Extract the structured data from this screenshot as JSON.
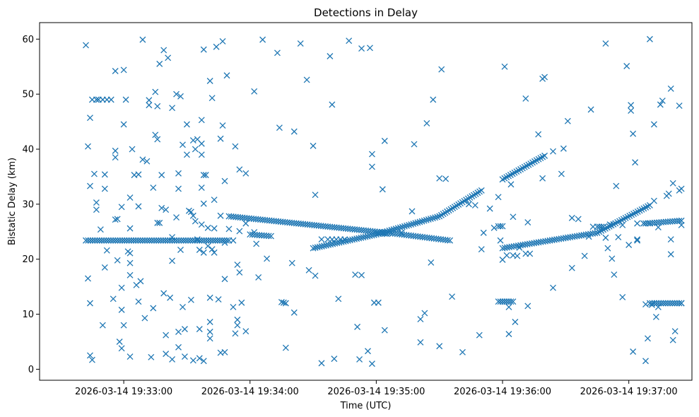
{
  "chart_data": {
    "type": "scatter",
    "title": "Detections in Delay",
    "xlabel": "Time (UTC)",
    "ylabel": "Bistatic Delay (km)",
    "x_date": "2026-03-14",
    "xlim": [
      "19:32:20",
      "19:37:30"
    ],
    "ylim": [
      -2,
      63
    ],
    "x_ticks": [
      "19:33:00",
      "19:34:00",
      "19:35:00",
      "19:36:00",
      "19:37:00"
    ],
    "x_tick_labels": [
      "2026-03-14 19:33:00",
      "2026-03-14 19:34:00",
      "2026-03-14 19:35:00",
      "2026-03-14 19:36:00",
      "2026-03-14 19:37:00"
    ],
    "y_ticks": [
      0,
      10,
      20,
      30,
      40,
      50,
      60
    ],
    "y_tick_labels": [
      "0",
      "10",
      "20",
      "30",
      "40",
      "50",
      "60"
    ],
    "marker": "x",
    "color": "#1f77b4",
    "grid": false,
    "legend": "none",
    "tracks": [
      {
        "points": [
          [
            "19:32:42",
            23.4
          ],
          [
            "19:33:50",
            23.4
          ]
        ]
      },
      {
        "points": [
          [
            "19:33:50",
            27.8
          ],
          [
            "19:35:10",
            24.6
          ],
          [
            "19:35:35",
            23.4
          ]
        ]
      },
      {
        "points": [
          [
            "19:34:30",
            22.0
          ],
          [
            "19:35:00",
            24.5
          ],
          [
            "19:35:30",
            27.8
          ],
          [
            "19:35:50",
            32.5
          ]
        ]
      },
      {
        "points": [
          [
            "19:36:00",
            34.5
          ],
          [
            "19:36:20",
            38.8
          ]
        ]
      },
      {
        "points": [
          [
            "19:36:00",
            22.0
          ],
          [
            "19:36:45",
            24.8
          ],
          [
            "19:37:10",
            29.8
          ]
        ]
      },
      {
        "points": [
          [
            "19:34:00",
            24.5
          ],
          [
            "19:34:10",
            24.2
          ]
        ]
      },
      {
        "points": [
          [
            "19:35:00",
            24.8
          ],
          [
            "19:35:05",
            24.6
          ]
        ]
      },
      {
        "points": [
          [
            "19:37:08",
            26.5
          ],
          [
            "19:37:25",
            27.0
          ]
        ]
      },
      {
        "points": [
          [
            "19:37:10",
            12.0
          ],
          [
            "19:37:25",
            12.0
          ]
        ]
      },
      {
        "points": [
          [
            "19:35:58",
            12.3
          ],
          [
            "19:36:05",
            12.3
          ]
        ]
      },
      {
        "points": [
          [
            "19:35:58",
            26.0
          ],
          [
            "19:36:00",
            26.0
          ]
        ]
      }
    ],
    "points": [
      [
        "19:32:42",
        58.9
      ],
      [
        "19:32:43",
        40.5
      ],
      [
        "19:32:43",
        16.5
      ],
      [
        "19:32:44",
        45.7
      ],
      [
        "19:32:44",
        33.3
      ],
      [
        "19:32:44",
        12.0
      ],
      [
        "19:32:44",
        2.5
      ],
      [
        "19:32:45",
        1.7
      ],
      [
        "19:32:45",
        49.0
      ],
      [
        "19:32:47",
        49.0
      ],
      [
        "19:32:48",
        49.0
      ],
      [
        "19:32:50",
        49.0
      ],
      [
        "19:32:52",
        49.0
      ],
      [
        "19:32:54",
        49.0
      ],
      [
        "19:32:46",
        35.5
      ],
      [
        "19:32:47",
        30.3
      ],
      [
        "19:32:47",
        29.0
      ],
      [
        "19:32:49",
        25.4
      ],
      [
        "19:32:50",
        8.0
      ],
      [
        "19:32:51",
        35.4
      ],
      [
        "19:32:51",
        32.8
      ],
      [
        "19:32:51",
        18.5
      ],
      [
        "19:32:52",
        21.6
      ],
      [
        "19:32:55",
        12.8
      ],
      [
        "19:32:56",
        54.2
      ],
      [
        "19:32:56",
        39.7
      ],
      [
        "19:32:56",
        38.5
      ],
      [
        "19:32:56",
        27.2
      ],
      [
        "19:32:57",
        27.3
      ],
      [
        "19:32:57",
        19.8
      ],
      [
        "19:32:59",
        29.5
      ],
      [
        "19:32:59",
        14.8
      ],
      [
        "19:32:59",
        10.8
      ],
      [
        "19:32:58",
        5.0
      ],
      [
        "19:32:59",
        3.8
      ],
      [
        "19:33:00",
        54.4
      ],
      [
        "19:33:00",
        44.5
      ],
      [
        "19:33:00",
        8.0
      ],
      [
        "19:33:01",
        49.0
      ],
      [
        "19:33:02",
        21.4
      ],
      [
        "19:33:03",
        25.6
      ],
      [
        "19:33:03",
        21.1
      ],
      [
        "19:33:03",
        19.3
      ],
      [
        "19:33:03",
        17.1
      ],
      [
        "19:33:03",
        31.2
      ],
      [
        "19:33:03",
        2.3
      ],
      [
        "19:33:04",
        40.0
      ],
      [
        "19:33:05",
        35.3
      ],
      [
        "19:33:06",
        15.3
      ],
      [
        "19:33:07",
        29.6
      ],
      [
        "19:33:07",
        12.3
      ],
      [
        "19:33:07",
        35.4
      ],
      [
        "19:33:08",
        16.0
      ],
      [
        "19:33:09",
        59.9
      ],
      [
        "19:33:09",
        38.1
      ],
      [
        "19:33:10",
        9.3
      ],
      [
        "19:33:11",
        37.8
      ],
      [
        "19:33:12",
        48.9
      ],
      [
        "19:33:12",
        48.0
      ],
      [
        "19:33:13",
        2.2
      ],
      [
        "19:33:14",
        11.1
      ],
      [
        "19:33:14",
        33.0
      ],
      [
        "19:33:15",
        50.4
      ],
      [
        "19:33:15",
        42.6
      ],
      [
        "19:33:16",
        41.8
      ],
      [
        "19:33:16",
        26.6
      ],
      [
        "19:33:16",
        47.8
      ],
      [
        "19:33:17",
        55.5
      ],
      [
        "19:33:17",
        26.6
      ],
      [
        "19:33:18",
        35.3
      ],
      [
        "19:33:18",
        29.3
      ],
      [
        "19:33:19",
        58.0
      ],
      [
        "19:33:19",
        13.8
      ],
      [
        "19:33:20",
        29.0
      ],
      [
        "19:33:20",
        6.2
      ],
      [
        "19:33:20",
        2.8
      ],
      [
        "19:33:21",
        56.6
      ],
      [
        "19:33:22",
        13.0
      ],
      [
        "19:33:23",
        47.5
      ],
      [
        "19:33:23",
        24.0
      ],
      [
        "19:33:23",
        19.7
      ],
      [
        "19:33:23",
        1.8
      ],
      [
        "19:33:25",
        50.0
      ],
      [
        "19:33:25",
        27.6
      ],
      [
        "19:33:26",
        32.8
      ],
      [
        "19:33:26",
        6.8
      ],
      [
        "19:33:26",
        4.0
      ],
      [
        "19:33:26",
        35.6
      ],
      [
        "19:33:27",
        49.6
      ],
      [
        "19:33:27",
        21.7
      ],
      [
        "19:33:28",
        11.3
      ],
      [
        "19:33:28",
        40.8
      ],
      [
        "19:33:29",
        7.3
      ],
      [
        "19:33:29",
        2.3
      ],
      [
        "19:33:30",
        44.5
      ],
      [
        "19:33:30",
        39.0
      ],
      [
        "19:33:31",
        28.8
      ],
      [
        "19:33:32",
        28.6
      ],
      [
        "19:33:32",
        12.6
      ],
      [
        "19:33:33",
        41.6
      ],
      [
        "19:33:33",
        27.9
      ],
      [
        "19:33:33",
        1.6
      ],
      [
        "19:33:34",
        40.0
      ],
      [
        "19:33:34",
        26.9
      ],
      [
        "19:33:35",
        41.8
      ],
      [
        "19:33:35",
        23.6
      ],
      [
        "19:33:36",
        21.7
      ],
      [
        "19:33:36",
        7.3
      ],
      [
        "19:33:36",
        2.0
      ],
      [
        "19:33:37",
        45.3
      ],
      [
        "19:33:37",
        41.0
      ],
      [
        "19:33:37",
        39.0
      ],
      [
        "19:33:37",
        33.0
      ],
      [
        "19:33:37",
        26.3
      ],
      [
        "19:33:38",
        58.1
      ],
      [
        "19:33:38",
        35.3
      ],
      [
        "19:33:38",
        30.1
      ],
      [
        "19:33:38",
        21.2
      ],
      [
        "19:33:38",
        1.5
      ],
      [
        "19:33:39",
        35.3
      ],
      [
        "19:33:40",
        25.7
      ],
      [
        "19:33:40",
        22.4
      ],
      [
        "19:33:41",
        52.4
      ],
      [
        "19:33:41",
        13.0
      ],
      [
        "19:33:41",
        8.6
      ],
      [
        "19:33:41",
        6.8
      ],
      [
        "19:33:41",
        5.6
      ],
      [
        "19:33:42",
        49.3
      ],
      [
        "19:33:42",
        21.8
      ],
      [
        "19:33:43",
        25.6
      ],
      [
        "19:33:43",
        21.2
      ],
      [
        "19:33:43",
        30.8
      ],
      [
        "19:33:44",
        58.6
      ],
      [
        "19:33:45",
        12.7
      ],
      [
        "19:33:46",
        41.9
      ],
      [
        "19:33:46",
        27.9
      ],
      [
        "19:33:46",
        3.0
      ],
      [
        "19:33:47",
        59.6
      ],
      [
        "19:33:47",
        44.3
      ],
      [
        "19:33:48",
        34.2
      ],
      [
        "19:33:48",
        23.0
      ],
      [
        "19:33:48",
        16.4
      ],
      [
        "19:33:48",
        3.1
      ],
      [
        "19:33:49",
        53.4
      ],
      [
        "19:33:50",
        25.5
      ],
      [
        "19:33:52",
        11.3
      ],
      [
        "19:33:52",
        23.4
      ],
      [
        "19:33:53",
        40.5
      ],
      [
        "19:33:53",
        6.5
      ],
      [
        "19:33:54",
        19.0
      ],
      [
        "19:33:54",
        9.0
      ],
      [
        "19:33:54",
        8.0
      ],
      [
        "19:33:55",
        36.3
      ],
      [
        "19:33:55",
        25.1
      ],
      [
        "19:33:55",
        17.6
      ],
      [
        "19:33:56",
        12.1
      ],
      [
        "19:33:58",
        35.6
      ],
      [
        "19:33:58",
        26.5
      ],
      [
        "19:33:58",
        6.9
      ],
      [
        "19:34:02",
        50.5
      ],
      [
        "19:34:02",
        24.9
      ],
      [
        "19:34:03",
        22.8
      ],
      [
        "19:34:04",
        16.7
      ],
      [
        "19:34:06",
        59.9
      ],
      [
        "19:34:08",
        20.1
      ],
      [
        "19:34:13",
        57.5
      ],
      [
        "19:34:14",
        43.9
      ],
      [
        "19:34:15",
        12.2
      ],
      [
        "19:34:16",
        12.1
      ],
      [
        "19:34:17",
        12.0
      ],
      [
        "19:34:17",
        3.9
      ],
      [
        "19:34:20",
        19.3
      ],
      [
        "19:34:21",
        43.2
      ],
      [
        "19:34:21",
        10.3
      ],
      [
        "19:34:24",
        59.2
      ],
      [
        "19:34:27",
        52.6
      ],
      [
        "19:34:28",
        18.0
      ],
      [
        "19:34:30",
        40.6
      ],
      [
        "19:34:31",
        31.7
      ],
      [
        "19:34:31",
        17.0
      ],
      [
        "19:34:34",
        23.6
      ],
      [
        "19:34:34",
        1.1
      ],
      [
        "19:34:37",
        23.6
      ],
      [
        "19:34:39",
        23.6
      ],
      [
        "19:34:41",
        23.6
      ],
      [
        "19:34:42",
        12.8
      ],
      [
        "19:34:43",
        23.6
      ],
      [
        "19:34:45",
        23.6
      ],
      [
        "19:34:38",
        56.9
      ],
      [
        "19:34:39",
        48.1
      ],
      [
        "19:34:40",
        1.9
      ],
      [
        "19:34:47",
        59.7
      ],
      [
        "19:34:50",
        17.2
      ],
      [
        "19:34:51",
        7.7
      ],
      [
        "19:34:52",
        1.8
      ],
      [
        "19:34:53",
        17.1
      ],
      [
        "19:34:53",
        58.3
      ],
      [
        "19:34:57",
        58.4
      ],
      [
        "19:34:56",
        3.3
      ],
      [
        "19:34:58",
        39.1
      ],
      [
        "19:34:58",
        36.8
      ],
      [
        "19:34:58",
        1.0
      ],
      [
        "19:34:59",
        12.1
      ],
      [
        "19:35:01",
        12.1
      ],
      [
        "19:35:03",
        32.7
      ],
      [
        "19:35:04",
        41.5
      ],
      [
        "19:35:04",
        7.1
      ],
      [
        "19:35:12",
        24.8
      ],
      [
        "19:35:17",
        28.7
      ],
      [
        "19:35:18",
        40.9
      ],
      [
        "19:35:21",
        9.1
      ],
      [
        "19:35:21",
        4.9
      ],
      [
        "19:35:23",
        10.2
      ],
      [
        "19:35:24",
        44.7
      ],
      [
        "19:35:26",
        19.4
      ],
      [
        "19:35:27",
        49.0
      ],
      [
        "19:35:31",
        54.5
      ],
      [
        "19:35:30",
        34.7
      ],
      [
        "19:35:33",
        34.6
      ],
      [
        "19:35:30",
        4.2
      ],
      [
        "19:35:36",
        13.2
      ],
      [
        "19:35:41",
        3.1
      ],
      [
        "19:35:44",
        30.0
      ],
      [
        "19:35:47",
        29.8
      ],
      [
        "19:35:49",
        6.2
      ],
      [
        "19:35:50",
        21.8
      ],
      [
        "19:35:51",
        24.8
      ],
      [
        "19:35:54",
        29.2
      ],
      [
        "19:35:56",
        25.7
      ],
      [
        "19:35:58",
        31.3
      ],
      [
        "19:35:59",
        23.4
      ],
      [
        "19:36:00",
        19.9
      ],
      [
        "19:36:01",
        55.0
      ],
      [
        "19:36:02",
        20.7
      ],
      [
        "19:36:03",
        6.4
      ],
      [
        "19:36:04",
        33.6
      ],
      [
        "19:36:03",
        11.3
      ],
      [
        "19:36:05",
        20.7
      ],
      [
        "19:36:06",
        8.6
      ],
      [
        "19:36:05",
        27.7
      ],
      [
        "19:36:07",
        20.6
      ],
      [
        "19:36:08",
        22.1
      ],
      [
        "19:36:11",
        21.0
      ],
      [
        "19:36:11",
        49.2
      ],
      [
        "19:36:12",
        26.7
      ],
      [
        "19:36:12",
        11.5
      ],
      [
        "19:36:13",
        21.0
      ],
      [
        "19:36:17",
        42.7
      ],
      [
        "19:36:19",
        52.8
      ],
      [
        "19:36:19",
        34.7
      ],
      [
        "19:36:20",
        53.1
      ],
      [
        "19:36:24",
        14.8
      ],
      [
        "19:36:24",
        39.6
      ],
      [
        "19:36:28",
        35.5
      ],
      [
        "19:36:29",
        40.1
      ],
      [
        "19:36:31",
        45.1
      ],
      [
        "19:36:33",
        27.5
      ],
      [
        "19:36:33",
        18.4
      ],
      [
        "19:36:36",
        27.3
      ],
      [
        "19:36:39",
        20.6
      ],
      [
        "19:36:41",
        24.1
      ],
      [
        "19:36:42",
        47.2
      ],
      [
        "19:36:43",
        25.9
      ],
      [
        "19:36:45",
        25.9
      ],
      [
        "19:36:46",
        25.9
      ],
      [
        "19:36:47",
        25.9
      ],
      [
        "19:36:48",
        25.9
      ],
      [
        "19:36:49",
        59.2
      ],
      [
        "19:36:49",
        23.9
      ],
      [
        "19:36:50",
        22.0
      ],
      [
        "19:36:51",
        26.3
      ],
      [
        "19:36:52",
        20.1
      ],
      [
        "19:36:53",
        17.2
      ],
      [
        "19:36:54",
        33.3
      ],
      [
        "19:36:55",
        24.0
      ],
      [
        "19:36:57",
        26.2
      ],
      [
        "19:36:57",
        13.1
      ],
      [
        "19:36:59",
        55.1
      ],
      [
        "19:37:00",
        22.6
      ],
      [
        "19:37:01",
        47.0
      ],
      [
        "19:37:01",
        48.0
      ],
      [
        "19:37:02",
        42.8
      ],
      [
        "19:37:02",
        3.2
      ],
      [
        "19:37:03",
        37.6
      ],
      [
        "19:37:04",
        23.6
      ],
      [
        "19:37:04",
        23.4
      ],
      [
        "19:37:04",
        26.5
      ],
      [
        "19:37:07",
        26.5
      ],
      [
        "19:37:08",
        11.8
      ],
      [
        "19:37:08",
        1.5
      ],
      [
        "19:37:09",
        5.6
      ],
      [
        "19:37:10",
        60.0
      ],
      [
        "19:37:10",
        26.5
      ],
      [
        "19:37:11",
        11.7
      ],
      [
        "19:37:12",
        44.5
      ],
      [
        "19:37:12",
        30.6
      ],
      [
        "19:37:13",
        9.5
      ],
      [
        "19:37:14",
        11.3
      ],
      [
        "19:37:14",
        25.8
      ],
      [
        "19:37:15",
        48.1
      ],
      [
        "19:37:16",
        48.8
      ],
      [
        "19:37:18",
        31.5
      ],
      [
        "19:37:19",
        31.9
      ],
      [
        "19:37:20",
        23.6
      ],
      [
        "19:37:20",
        20.9
      ],
      [
        "19:37:20",
        51.0
      ],
      [
        "19:37:21",
        33.8
      ],
      [
        "19:37:21",
        5.3
      ],
      [
        "19:37:22",
        6.9
      ],
      [
        "19:37:24",
        47.9
      ],
      [
        "19:37:24",
        32.5
      ],
      [
        "19:37:25",
        32.8
      ],
      [
        "19:37:25",
        26.2
      ],
      [
        "19:37:25",
        12.0
      ]
    ]
  }
}
